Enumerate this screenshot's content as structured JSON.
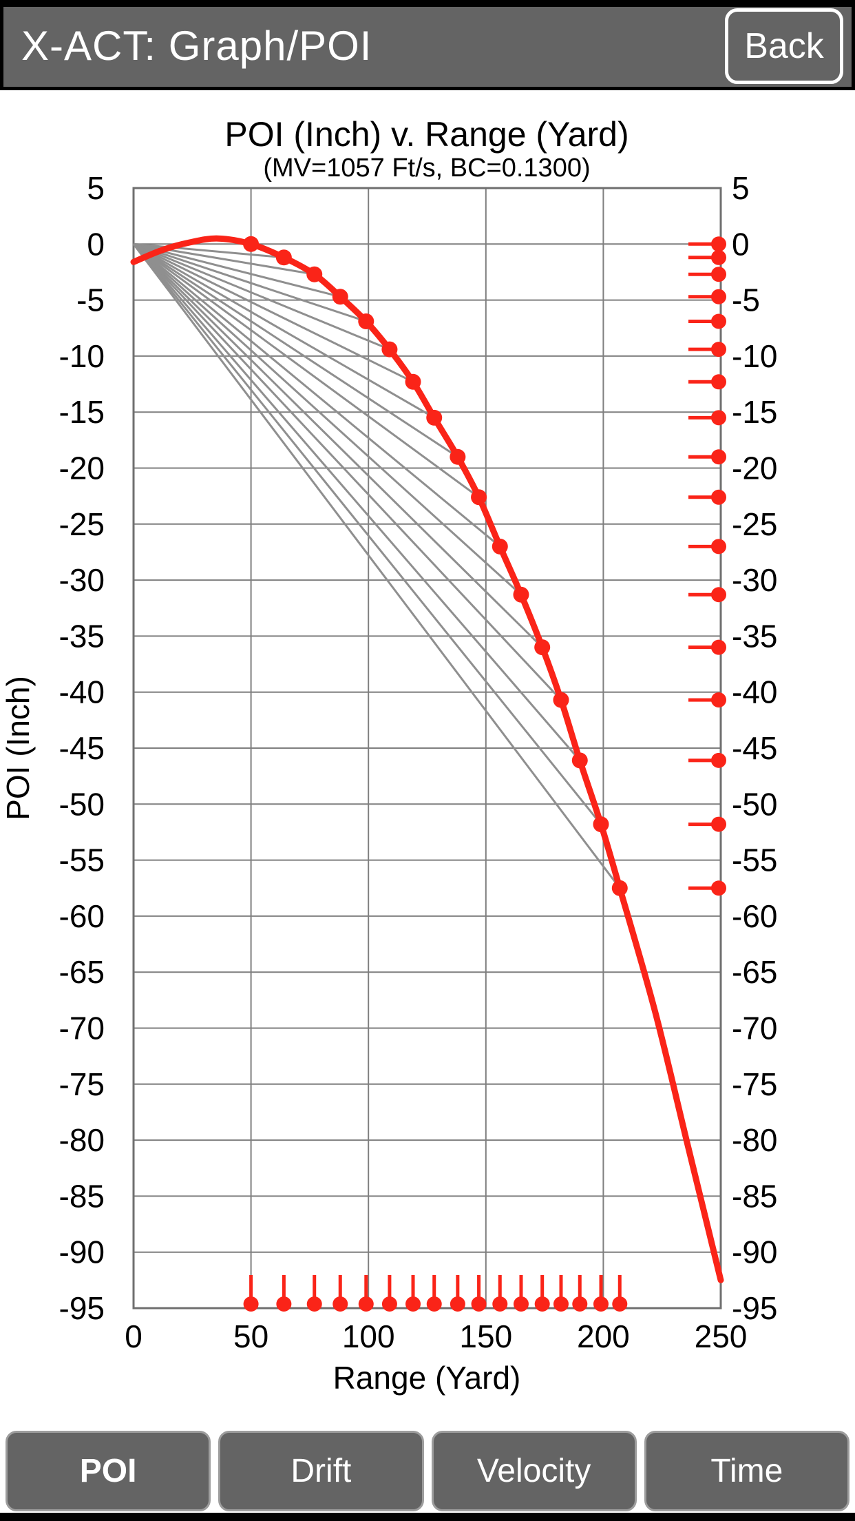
{
  "header": {
    "title": "X-ACT: Graph/POI",
    "back_label": "Back"
  },
  "tabs": [
    {
      "label": "POI",
      "active": true
    },
    {
      "label": "Drift",
      "active": false
    },
    {
      "label": "Velocity",
      "active": false
    },
    {
      "label": "Time",
      "active": false
    }
  ],
  "colors": {
    "chrome_gray": "#646464",
    "accent_red": "#fa2418",
    "grid_gray": "#7f7f7f",
    "border_gray": "#6f6f6f",
    "fan_gray": "#8f8f8f",
    "text_black": "#000000",
    "white": "#ffffff"
  },
  "chart_data": {
    "type": "line",
    "title": "POI (Inch) v. Range (Yard)",
    "subtitle": "(MV=1057 Ft/s, BC=0.1300)",
    "xlabel": "Range (Yard)",
    "ylabel": "POI (Inch)",
    "xlim": [
      0,
      250
    ],
    "ylim": [
      -95,
      5
    ],
    "x_ticks": [
      0,
      50,
      100,
      150,
      200,
      250
    ],
    "y_ticks": [
      5,
      0,
      -5,
      -10,
      -15,
      -20,
      -25,
      -30,
      -35,
      -40,
      -45,
      -50,
      -55,
      -60,
      -65,
      -70,
      -75,
      -80,
      -85,
      -90,
      -95
    ],
    "grid": true,
    "legend": "none",
    "series": [
      {
        "name": "trajectory",
        "color": "#fa2418",
        "curve": [
          [
            0,
            -1.6
          ],
          [
            12,
            -0.55
          ],
          [
            24,
            0.15
          ],
          [
            36,
            0.5
          ],
          [
            50,
            0
          ],
          [
            64,
            -1.2
          ],
          [
            77,
            -2.7
          ],
          [
            88,
            -4.7
          ],
          [
            99,
            -6.9
          ],
          [
            109,
            -9.4
          ],
          [
            119,
            -12.3
          ],
          [
            128,
            -15.5
          ],
          [
            138,
            -19.0
          ],
          [
            147,
            -22.6
          ],
          [
            156,
            -27.0
          ],
          [
            165,
            -31.3
          ],
          [
            174,
            -36.0
          ],
          [
            182,
            -40.7
          ],
          [
            190,
            -46.1
          ],
          [
            199,
            -51.8
          ],
          [
            207,
            -57.5
          ],
          [
            222,
            -68.5
          ],
          [
            236,
            -80.5
          ],
          [
            250,
            -92.5
          ]
        ],
        "markers": [
          [
            50,
            0
          ],
          [
            64,
            -1.2
          ],
          [
            77,
            -2.7
          ],
          [
            88,
            -4.7
          ],
          [
            99,
            -6.9
          ],
          [
            109,
            -9.4
          ],
          [
            119,
            -12.3
          ],
          [
            128,
            -15.5
          ],
          [
            138,
            -19.0
          ],
          [
            147,
            -22.6
          ],
          [
            156,
            -27.0
          ],
          [
            165,
            -31.3
          ],
          [
            174,
            -36.0
          ],
          [
            182,
            -40.7
          ],
          [
            190,
            -46.1
          ],
          [
            199,
            -51.8
          ],
          [
            207,
            -57.5
          ]
        ]
      },
      {
        "name": "sight-lines",
        "color": "#8f8f8f",
        "origin": [
          0,
          0
        ],
        "note": "gray fan lines from (0,0) to each trajectory marker after the 50-yard zero"
      }
    ],
    "axis_projection_ticks": {
      "bottom": "red lollipop tick at each marker range",
      "right": "red lollipop tick at each marker drop value"
    }
  }
}
